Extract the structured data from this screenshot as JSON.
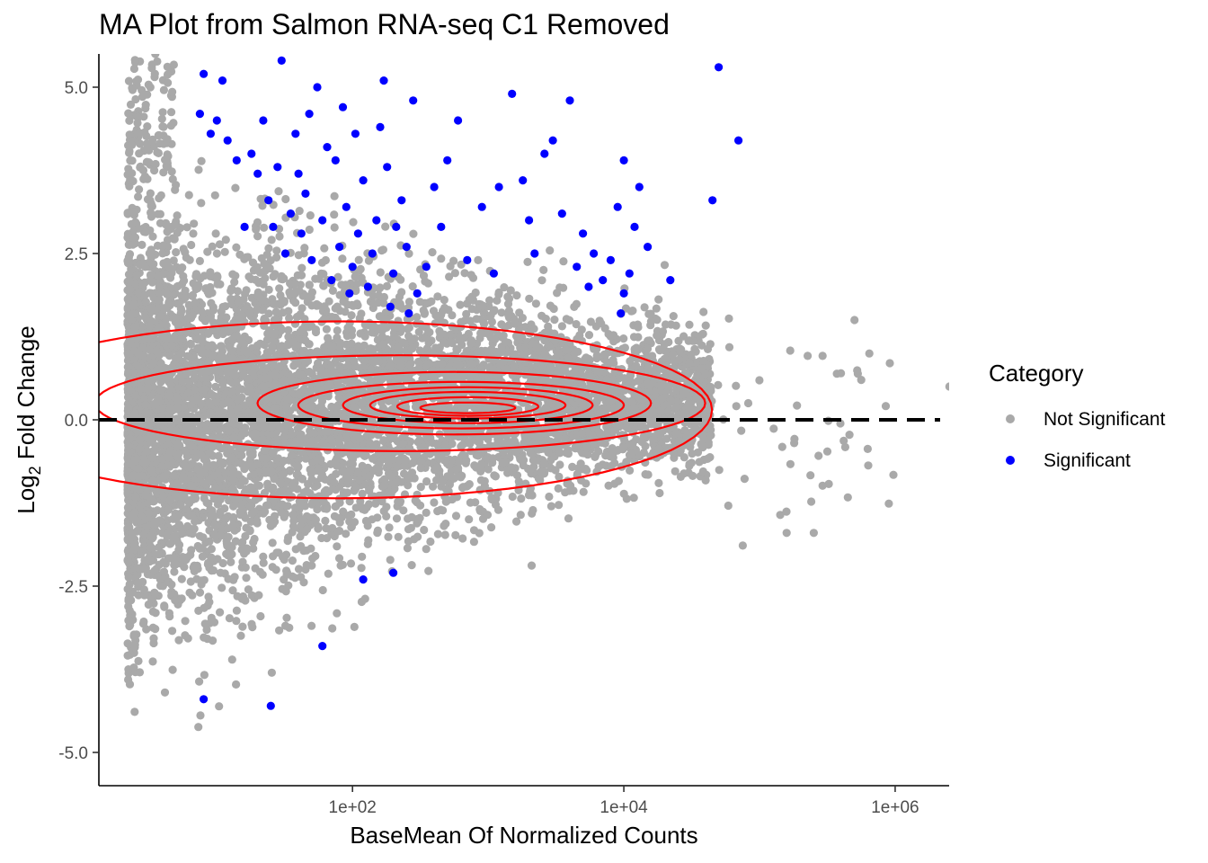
{
  "chart_data": {
    "type": "scatter",
    "title": "MA Plot from Salmon RNA-seq C1 Removed",
    "xlabel": "BaseMean Of Normalized Counts",
    "ylabel": {
      "prefix": "Log",
      "subscript": "2",
      "suffix": " Fold Change"
    },
    "x_scale": "log10",
    "xlim": [
      1.35,
      2500000
    ],
    "ylim": [
      -5.5,
      5.5
    ],
    "x_ticks": [
      {
        "value": 100,
        "label": "1e+02"
      },
      {
        "value": 10000,
        "label": "1e+04"
      },
      {
        "value": 1000000,
        "label": "1e+06"
      }
    ],
    "y_ticks": [
      {
        "value": 5.0,
        "label": "5.0"
      },
      {
        "value": 2.5,
        "label": "2.5"
      },
      {
        "value": 0.0,
        "label": "0.0"
      },
      {
        "value": -2.5,
        "label": "-2.5"
      },
      {
        "value": -5.0,
        "label": "-5.0"
      }
    ],
    "reference_line": {
      "y": 0,
      "style": "dashed",
      "color": "#000000"
    },
    "grid": false,
    "legend": {
      "title": "Category",
      "placement": "right",
      "entries": [
        {
          "label": "Not Significant",
          "color": "#A9A9A9"
        },
        {
          "label": "Significant",
          "color": "#0000FF"
        }
      ]
    },
    "density_contour_color": "#FF0000",
    "series": [
      {
        "name": "Significant",
        "color": "#0000FF",
        "points": [
          [
            50000,
            5.3
          ],
          [
            70000,
            4.2
          ],
          [
            45000,
            3.3
          ],
          [
            22000,
            2.1
          ],
          [
            15000,
            2.6
          ],
          [
            10000,
            3.9
          ],
          [
            13000,
            3.5
          ],
          [
            9000,
            3.2
          ],
          [
            12000,
            2.9
          ],
          [
            8000,
            2.4
          ],
          [
            11000,
            2.2
          ],
          [
            10000,
            1.9
          ],
          [
            9500,
            1.6
          ],
          [
            4000,
            4.8
          ],
          [
            3000,
            4.2
          ],
          [
            2600,
            4.0
          ],
          [
            3500,
            3.1
          ],
          [
            5000,
            2.8
          ],
          [
            6000,
            2.5
          ],
          [
            4500,
            2.3
          ],
          [
            5500,
            2.0
          ],
          [
            7000,
            2.1
          ],
          [
            2000,
            3.0
          ],
          [
            2200,
            2.5
          ],
          [
            1800,
            3.6
          ],
          [
            1500,
            4.9
          ],
          [
            1200,
            3.5
          ],
          [
            1100,
            2.2
          ],
          [
            900,
            3.2
          ],
          [
            700,
            2.4
          ],
          [
            600,
            4.5
          ],
          [
            500,
            3.9
          ],
          [
            450,
            2.9
          ],
          [
            400,
            3.5
          ],
          [
            350,
            2.3
          ],
          [
            300,
            1.9
          ],
          [
            280,
            4.8
          ],
          [
            260,
            1.6
          ],
          [
            250,
            2.6
          ],
          [
            230,
            3.3
          ],
          [
            210,
            2.9
          ],
          [
            200,
            2.2
          ],
          [
            190,
            1.7
          ],
          [
            180,
            3.8
          ],
          [
            170,
            5.1
          ],
          [
            160,
            4.4
          ],
          [
            150,
            3.0
          ],
          [
            140,
            2.5
          ],
          [
            130,
            2.0
          ],
          [
            120,
            3.6
          ],
          [
            110,
            2.8
          ],
          [
            105,
            4.3
          ],
          [
            100,
            2.3
          ],
          [
            95,
            1.9
          ],
          [
            90,
            3.2
          ],
          [
            85,
            4.7
          ],
          [
            80,
            2.6
          ],
          [
            75,
            3.9
          ],
          [
            70,
            2.1
          ],
          [
            65,
            4.1
          ],
          [
            60,
            3.0
          ],
          [
            55,
            5.0
          ],
          [
            50,
            2.4
          ],
          [
            48,
            4.6
          ],
          [
            45,
            3.4
          ],
          [
            42,
            2.8
          ],
          [
            40,
            3.7
          ],
          [
            38,
            4.3
          ],
          [
            35,
            3.1
          ],
          [
            32,
            2.5
          ],
          [
            30,
            5.4
          ],
          [
            28,
            3.8
          ],
          [
            26,
            2.9
          ],
          [
            24,
            3.3
          ],
          [
            22,
            4.5
          ],
          [
            20,
            3.7
          ],
          [
            18,
            4.0
          ],
          [
            16,
            2.9
          ],
          [
            14,
            3.9
          ],
          [
            12,
            4.2
          ],
          [
            11,
            5.1
          ],
          [
            10,
            4.5
          ],
          [
            9,
            4.3
          ],
          [
            8,
            5.2
          ],
          [
            7.5,
            4.6
          ],
          [
            120,
            -2.4
          ],
          [
            200,
            -2.3
          ],
          [
            60,
            -3.4
          ],
          [
            25,
            -4.3
          ],
          [
            8,
            -4.2
          ]
        ]
      }
    ]
  }
}
